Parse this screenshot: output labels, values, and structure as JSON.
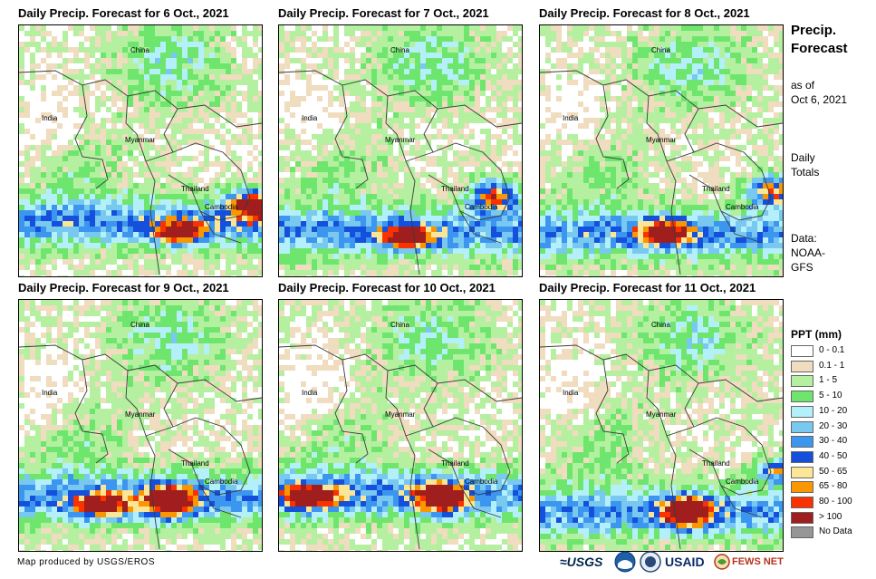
{
  "panels": [
    {
      "title": "Daily Precip. Forecast for 6 Oct., 2021"
    },
    {
      "title": "Daily Precip. Forecast for 7 Oct., 2021"
    },
    {
      "title": "Daily Precip. Forecast for 8 Oct., 2021"
    },
    {
      "title": "Daily Precip. Forecast for 9 Oct., 2021"
    },
    {
      "title": "Daily Precip. Forecast for 10 Oct., 2021"
    },
    {
      "title": "Daily Precip. Forecast for 11 Oct., 2021"
    }
  ],
  "map_labels": {
    "china": "China",
    "india": "India",
    "myanmar": "Myanmar",
    "thailand": "Thailand",
    "cambodia": "Cambodia"
  },
  "sidebar": {
    "title_line1": "Precip.",
    "title_line2": "Forecast",
    "asof_line1": "as of",
    "asof_line2": "Oct 6, 2021",
    "totals_line1": "Daily",
    "totals_line2": "Totals",
    "data_line1": "Data:",
    "data_line2": "NOAA-",
    "data_line3": "GFS"
  },
  "legend": {
    "title": "PPT (mm)",
    "items": [
      {
        "label": "0 - 0.1",
        "color": "#ffffff"
      },
      {
        "label": "0.1 - 1",
        "color": "#f0dcbe"
      },
      {
        "label": "1 - 5",
        "color": "#b4f0a0"
      },
      {
        "label": "5 - 10",
        "color": "#6ee66e"
      },
      {
        "label": "10 - 20",
        "color": "#b4f0fa"
      },
      {
        "label": "20 - 30",
        "color": "#78c8f0"
      },
      {
        "label": "30 - 40",
        "color": "#3c96f0"
      },
      {
        "label": "40 - 50",
        "color": "#1450dc"
      },
      {
        "label": "50 - 65",
        "color": "#fae696"
      },
      {
        "label": "65 - 80",
        "color": "#fa9600"
      },
      {
        "label": "80 - 100",
        "color": "#fa3200"
      },
      {
        "label": "> 100",
        "color": "#a01e1e"
      },
      {
        "label": "No Data",
        "color": "#969696"
      }
    ]
  },
  "footer": {
    "credit": "Map produced by USGS/EROS",
    "usgs_logo": "≈USGS",
    "usaid_logo": "USAID",
    "fews_logo": "FEWS NET"
  },
  "colors": {
    "land_bg": "#ffffff",
    "border": "#3c3c3c"
  }
}
